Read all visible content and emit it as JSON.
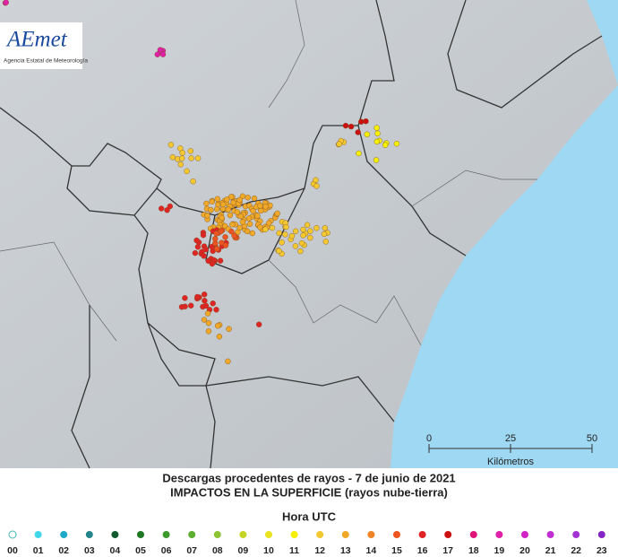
{
  "logo": {
    "name": "AEmet",
    "subtitle": "Agencia Estatal de Meteorología"
  },
  "scale": {
    "ticks": [
      "0",
      "25",
      "50"
    ],
    "unit": "Kilómetros"
  },
  "caption": {
    "title": "Descargas procedentes de rayos - 7 de junio de 2021",
    "subtitle": "IMPACTOS EN LA SUPERFICIE (rayos nube-tierra)"
  },
  "legend": {
    "title": "Hora UTC",
    "items": [
      {
        "label": "00",
        "color": "#ffffff"
      },
      {
        "label": "01",
        "color": "#40d8e8"
      },
      {
        "label": "02",
        "color": "#20a8c8"
      },
      {
        "label": "03",
        "color": "#208488"
      },
      {
        "label": "04",
        "color": "#105c30"
      },
      {
        "label": "05",
        "color": "#1e7a22"
      },
      {
        "label": "06",
        "color": "#3c9a2c"
      },
      {
        "label": "07",
        "color": "#5cae30"
      },
      {
        "label": "08",
        "color": "#8cc434"
      },
      {
        "label": "09",
        "color": "#c4d424"
      },
      {
        "label": "10",
        "color": "#e8e420"
      },
      {
        "label": "11",
        "color": "#f4f000"
      },
      {
        "label": "12",
        "color": "#f4c830"
      },
      {
        "label": "13",
        "color": "#f0a828"
      },
      {
        "label": "14",
        "color": "#f08424"
      },
      {
        "label": "15",
        "color": "#ec5420"
      },
      {
        "label": "16",
        "color": "#e02424"
      },
      {
        "label": "17",
        "color": "#cc1010"
      },
      {
        "label": "18",
        "color": "#e01478"
      },
      {
        "label": "19",
        "color": "#e020a8"
      },
      {
        "label": "20",
        "color": "#d024c4"
      },
      {
        "label": "21",
        "color": "#c030d4"
      },
      {
        "label": "22",
        "color": "#a434d4"
      },
      {
        "label": "23",
        "color": "#8424c4"
      }
    ]
  }
}
